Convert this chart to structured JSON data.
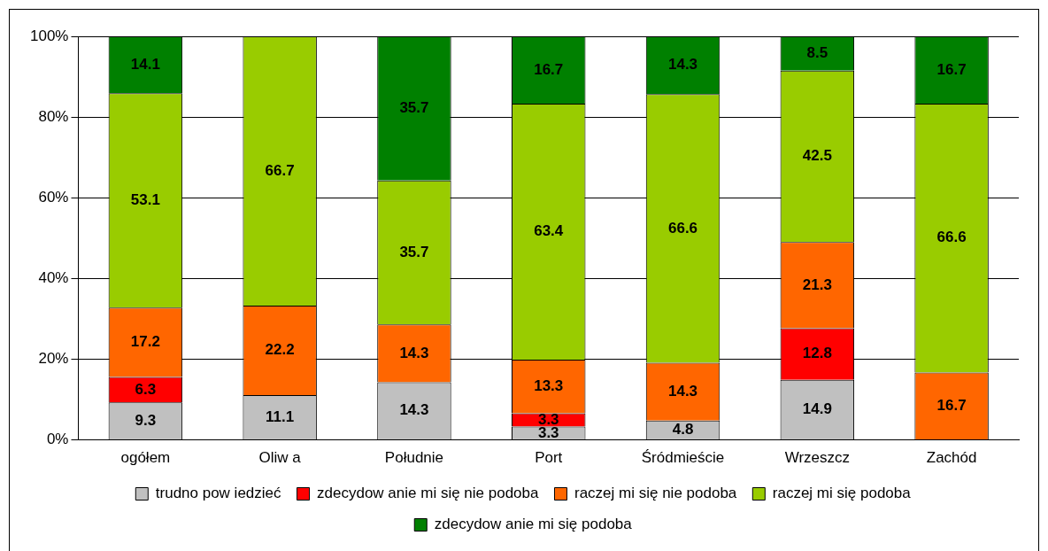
{
  "chart_data": {
    "type": "bar",
    "stacked": true,
    "categories": [
      "ogółem",
      "Oliw a",
      "Południe",
      "Port",
      "Śródmieście",
      "Wrzeszcz",
      "Zachód"
    ],
    "series": [
      {
        "name": "trudno pow iedzieć",
        "color": "#c0c0c0",
        "values": [
          9.3,
          11.1,
          14.3,
          3.3,
          4.8,
          14.9,
          null
        ]
      },
      {
        "name": "zdecydow anie mi się nie podoba",
        "color": "#ff0000",
        "values": [
          6.3,
          null,
          null,
          3.3,
          null,
          12.8,
          null
        ]
      },
      {
        "name": "raczej mi się nie podoba",
        "color": "#ff6600",
        "values": [
          17.2,
          22.2,
          14.3,
          13.3,
          14.3,
          21.3,
          16.7
        ]
      },
      {
        "name": "raczej mi się podoba",
        "color": "#99cc00",
        "values": [
          53.1,
          66.7,
          35.7,
          63.4,
          66.6,
          42.5,
          66.6
        ]
      },
      {
        "name": "zdecydow anie mi się podoba",
        "color": "#008000",
        "values": [
          14.1,
          null,
          35.7,
          16.7,
          14.3,
          8.5,
          16.7
        ]
      }
    ],
    "ylim": [
      0,
      100
    ],
    "yticks": [
      {
        "value": 0,
        "label": "0%"
      },
      {
        "value": 20,
        "label": "20%"
      },
      {
        "value": 40,
        "label": "40%"
      },
      {
        "value": 60,
        "label": "60%"
      },
      {
        "value": 80,
        "label": "80%"
      },
      {
        "value": 100,
        "label": "100%"
      }
    ],
    "grid": "y",
    "legend": "bottom",
    "data_labels": true
  }
}
